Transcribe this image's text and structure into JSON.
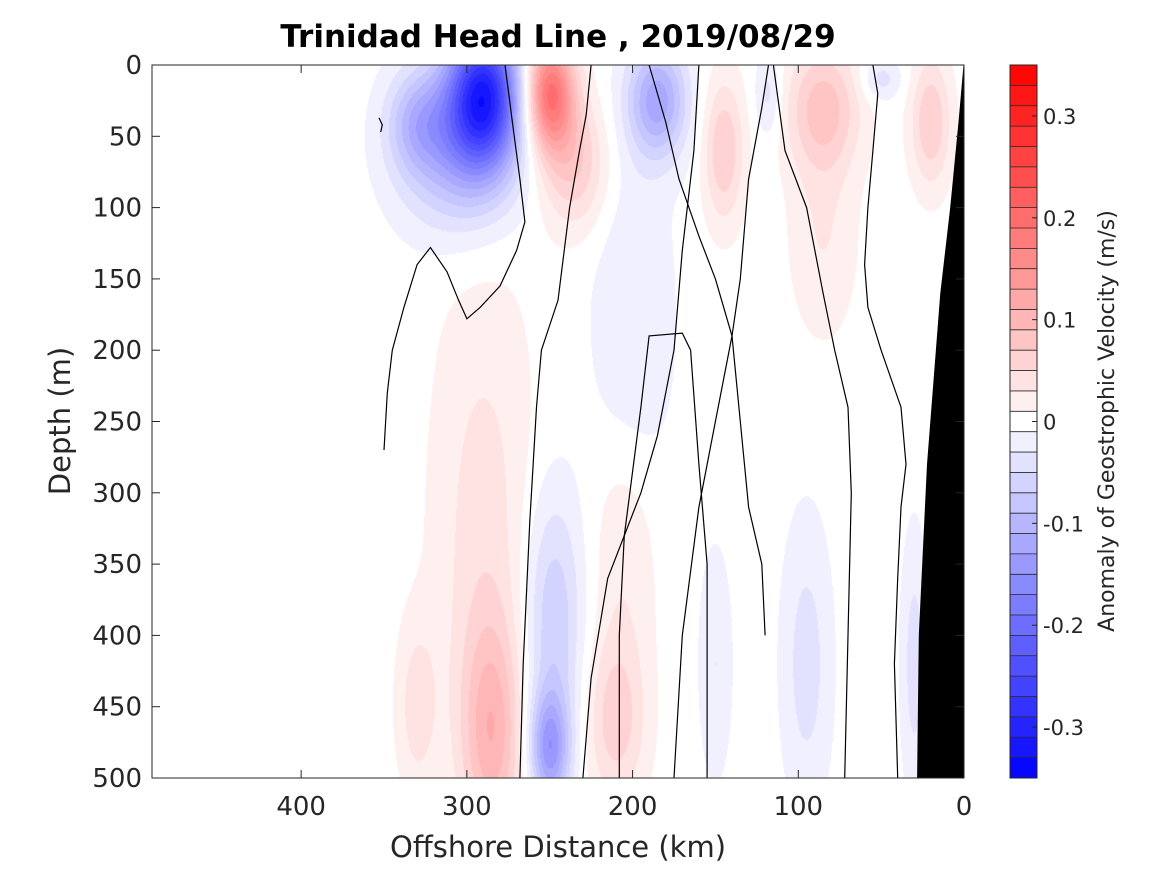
{
  "chart_data": {
    "type": "heatmap",
    "title": "Trinidad Head Line , 2019/08/29",
    "xlabel": "Offshore Distance (km)",
    "ylabel": "Depth (m)",
    "xlim": [
      490,
      0
    ],
    "ylim": [
      0,
      500
    ],
    "x_reversed": true,
    "y_reversed": true,
    "xticks": [
      400,
      300,
      200,
      100,
      0
    ],
    "xtick_labels": [
      "400",
      "300",
      "200",
      "100",
      "0"
    ],
    "yticks": [
      0,
      50,
      100,
      150,
      200,
      250,
      300,
      350,
      400,
      450,
      500
    ],
    "ytick_labels": [
      "0",
      "50",
      "100",
      "150",
      "200",
      "250",
      "300",
      "350",
      "400",
      "450",
      "500"
    ],
    "colorbar": {
      "label": "Anomaly of Geostrophic Velocity (m/s)",
      "limits": [
        -0.35,
        0.35
      ],
      "level_step": 0.02,
      "ticks": [
        0.3,
        0.2,
        0.1,
        0,
        -0.1,
        -0.2,
        -0.3
      ],
      "tick_labels": [
        "0.3",
        "0.2",
        "0.1",
        "0",
        "-0.1",
        "-0.2",
        "-0.3"
      ],
      "colormap": "blue-white-red",
      "negative_color": "#0000ff",
      "positive_color": "#ff0000"
    },
    "features": [
      {
        "sign": "negative",
        "x": 290,
        "depth": 20,
        "x_width": 22,
        "depth_width": 50,
        "peak": -0.28
      },
      {
        "sign": "negative",
        "x": 305,
        "depth": 60,
        "x_width": 35,
        "depth_width": 55,
        "peak": -0.1
      },
      {
        "sign": "negative",
        "x": 330,
        "depth": 40,
        "x_width": 18,
        "depth_width": 35,
        "peak": -0.07
      },
      {
        "sign": "positive",
        "x": 250,
        "depth": 20,
        "x_width": 15,
        "depth_width": 40,
        "peak": 0.2
      },
      {
        "sign": "positive",
        "x": 235,
        "depth": 70,
        "x_width": 20,
        "depth_width": 45,
        "peak": 0.07
      },
      {
        "sign": "negative",
        "x": 185,
        "depth": 25,
        "x_width": 18,
        "depth_width": 40,
        "peak": -0.12
      },
      {
        "sign": "negative",
        "x": 200,
        "depth": 180,
        "x_width": 25,
        "depth_width": 130,
        "peak": -0.03
      },
      {
        "sign": "positive",
        "x": 145,
        "depth": 60,
        "x_width": 12,
        "depth_width": 50,
        "peak": 0.07
      },
      {
        "sign": "negative",
        "x": 118,
        "depth": 20,
        "x_width": 8,
        "depth_width": 30,
        "peak": -0.04
      },
      {
        "sign": "positive",
        "x": 85,
        "depth": 30,
        "x_width": 22,
        "depth_width": 45,
        "peak": 0.08
      },
      {
        "sign": "positive",
        "x": 85,
        "depth": 120,
        "x_width": 20,
        "depth_width": 70,
        "peak": 0.03
      },
      {
        "sign": "negative",
        "x": 50,
        "depth": 10,
        "x_width": 12,
        "depth_width": 15,
        "peak": -0.04
      },
      {
        "sign": "positive",
        "x": 20,
        "depth": 40,
        "x_width": 12,
        "depth_width": 45,
        "peak": 0.07
      },
      {
        "sign": "positive",
        "x": 290,
        "depth": 330,
        "x_width": 30,
        "depth_width": 180,
        "peak": 0.04
      },
      {
        "sign": "positive",
        "x": 285,
        "depth": 470,
        "x_width": 18,
        "depth_width": 80,
        "peak": 0.09
      },
      {
        "sign": "positive",
        "x": 330,
        "depth": 450,
        "x_width": 12,
        "depth_width": 60,
        "peak": 0.04
      },
      {
        "sign": "negative",
        "x": 248,
        "depth": 390,
        "x_width": 18,
        "depth_width": 90,
        "peak": -0.07
      },
      {
        "sign": "negative",
        "x": 250,
        "depth": 480,
        "x_width": 12,
        "depth_width": 40,
        "peak": -0.13
      },
      {
        "sign": "positive",
        "x": 210,
        "depth": 460,
        "x_width": 18,
        "depth_width": 60,
        "peak": 0.06
      },
      {
        "sign": "positive",
        "x": 205,
        "depth": 340,
        "x_width": 20,
        "depth_width": 90,
        "peak": 0.03
      },
      {
        "sign": "negative",
        "x": 150,
        "depth": 420,
        "x_width": 10,
        "depth_width": 80,
        "peak": -0.03
      },
      {
        "sign": "negative",
        "x": 95,
        "depth": 420,
        "x_width": 15,
        "depth_width": 100,
        "peak": -0.04
      },
      {
        "sign": "negative",
        "x": 30,
        "depth": 420,
        "x_width": 8,
        "depth_width": 90,
        "peak": -0.04
      }
    ],
    "zero_contours": [
      [
        [
          350,
          270
        ],
        [
          348,
          230
        ],
        [
          345,
          200
        ],
        [
          338,
          170
        ],
        [
          330,
          140
        ],
        [
          322,
          128
        ],
        [
          312,
          145
        ],
        [
          305,
          165
        ],
        [
          300,
          178
        ],
        [
          292,
          170
        ],
        [
          280,
          155
        ],
        [
          270,
          130
        ],
        [
          265,
          110
        ],
        [
          268,
          80
        ],
        [
          272,
          45
        ],
        [
          277,
          0
        ]
      ],
      [
        [
          268,
          500
        ],
        [
          266,
          420
        ],
        [
          262,
          320
        ],
        [
          258,
          240
        ],
        [
          255,
          200
        ],
        [
          245,
          165
        ],
        [
          238,
          100
        ],
        [
          232,
          60
        ],
        [
          228,
          35
        ],
        [
          225,
          0
        ]
      ],
      [
        [
          230,
          500
        ],
        [
          225,
          430
        ],
        [
          215,
          360
        ],
        [
          195,
          300
        ],
        [
          185,
          260
        ],
        [
          175,
          200
        ],
        [
          170,
          130
        ],
        [
          163,
          60
        ],
        [
          160,
          0
        ]
      ],
      [
        [
          175,
          500
        ],
        [
          170,
          400
        ],
        [
          160,
          310
        ],
        [
          150,
          250
        ],
        [
          140,
          190
        ],
        [
          135,
          150
        ],
        [
          130,
          80
        ],
        [
          122,
          30
        ],
        [
          118,
          0
        ]
      ],
      [
        [
          155,
          500
        ],
        [
          155,
          350
        ],
        [
          160,
          280
        ],
        [
          165,
          200
        ],
        [
          170,
          188
        ],
        [
          190,
          190
        ],
        [
          195,
          240
        ],
        [
          205,
          330
        ],
        [
          208,
          400
        ],
        [
          208,
          500
        ]
      ],
      [
        [
          120,
          400
        ],
        [
          122,
          350
        ],
        [
          130,
          310
        ],
        [
          135,
          250
        ],
        [
          140,
          190
        ],
        [
          150,
          150
        ],
        [
          160,
          120
        ],
        [
          172,
          80
        ],
        [
          180,
          40
        ],
        [
          190,
          0
        ]
      ],
      [
        [
          72,
          500
        ],
        [
          70,
          400
        ],
        [
          68,
          300
        ],
        [
          70,
          240
        ],
        [
          78,
          200
        ],
        [
          85,
          160
        ],
        [
          95,
          100
        ],
        [
          108,
          60
        ],
        [
          115,
          0
        ]
      ],
      [
        [
          40,
          500
        ],
        [
          42,
          420
        ],
        [
          40,
          360
        ],
        [
          38,
          310
        ],
        [
          35,
          280
        ],
        [
          38,
          240
        ],
        [
          50,
          200
        ],
        [
          58,
          170
        ],
        [
          60,
          140
        ],
        [
          58,
          100
        ],
        [
          55,
          60
        ],
        [
          52,
          20
        ],
        [
          55,
          0
        ]
      ],
      [
        [
          352,
          47
        ],
        [
          351,
          42
        ],
        [
          353,
          37
        ]
      ]
    ],
    "bathymetry": [
      [
        0,
        0
      ],
      [
        0,
        500
      ],
      [
        28,
        500
      ],
      [
        27,
        400
      ],
      [
        22,
        280
      ],
      [
        14,
        160
      ],
      [
        8,
        100
      ],
      [
        3,
        40
      ],
      [
        0,
        0
      ]
    ]
  }
}
